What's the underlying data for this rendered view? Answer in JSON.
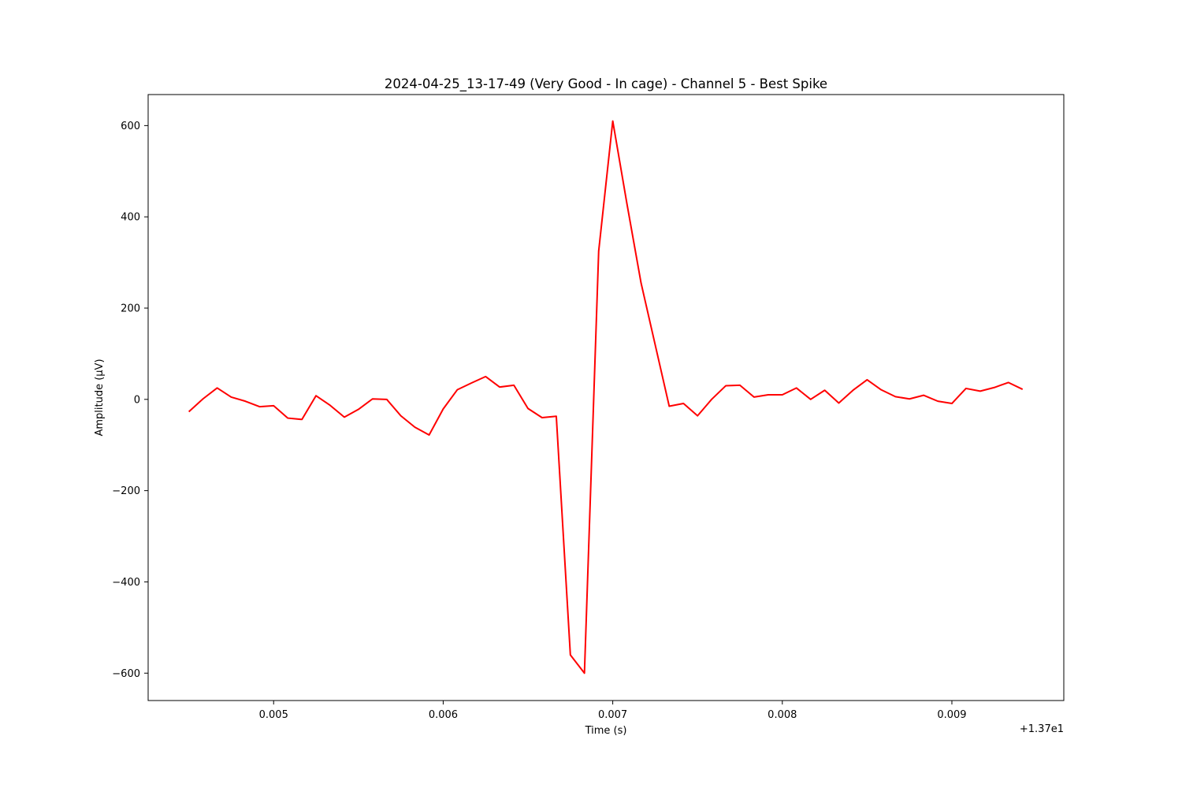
{
  "chart_data": {
    "type": "line",
    "title": "2024-04-25_13-17-49 (Very Good - In cage) - Channel 5 - Best Spike",
    "xlabel": "Time (s)",
    "ylabel": "Amplitude (µV)",
    "x_offset_label": "+1.37e1",
    "xlim": [
      0.00426,
      0.00966
    ],
    "ylim": [
      -660,
      668
    ],
    "xticks": [
      0.005,
      0.006,
      0.007,
      0.008,
      0.009
    ],
    "xtick_labels": [
      "0.005",
      "0.006",
      "0.007",
      "0.008",
      "0.009"
    ],
    "yticks": [
      -600,
      -400,
      -200,
      0,
      200,
      400,
      600
    ],
    "ytick_labels": [
      "−600",
      "−400",
      "−200",
      "0",
      "200",
      "400",
      "600"
    ],
    "grid": false,
    "series": [
      {
        "color": "#ff0000",
        "x": [
          0.0045,
          0.004583,
          0.004667,
          0.00475,
          0.004833,
          0.004917,
          0.005,
          0.005083,
          0.005167,
          0.00525,
          0.005333,
          0.005417,
          0.0055,
          0.005583,
          0.005667,
          0.00575,
          0.005833,
          0.005917,
          0.006,
          0.006083,
          0.006167,
          0.00625,
          0.006333,
          0.006417,
          0.0065,
          0.006583,
          0.006667,
          0.00675,
          0.006833,
          0.006917,
          0.007,
          0.007083,
          0.007167,
          0.00725,
          0.007333,
          0.007417,
          0.0075,
          0.007583,
          0.007667,
          0.00775,
          0.007833,
          0.007917,
          0.008,
          0.008083,
          0.008167,
          0.00825,
          0.008333,
          0.008417,
          0.0085,
          0.008583,
          0.008667,
          0.00875,
          0.008833,
          0.008917,
          0.009,
          0.009083,
          0.009167,
          0.00925,
          0.009333,
          0.009417
        ],
        "y": [
          -27,
          1,
          25,
          5,
          -4,
          -16,
          -14,
          -41,
          -44,
          8,
          -13,
          -39,
          -22,
          1,
          0,
          -36,
          -61,
          -78,
          -21,
          21,
          36,
          50,
          27,
          31,
          -20,
          -40,
          -37,
          -560,
          -600,
          325,
          610,
          430,
          255,
          120,
          -15,
          -9,
          -36,
          0,
          30,
          31,
          5,
          10,
          10,
          25,
          0,
          20,
          -8,
          20,
          43,
          21,
          6,
          1,
          9,
          -4,
          -9,
          24,
          18,
          26,
          37,
          22
        ]
      }
    ]
  }
}
